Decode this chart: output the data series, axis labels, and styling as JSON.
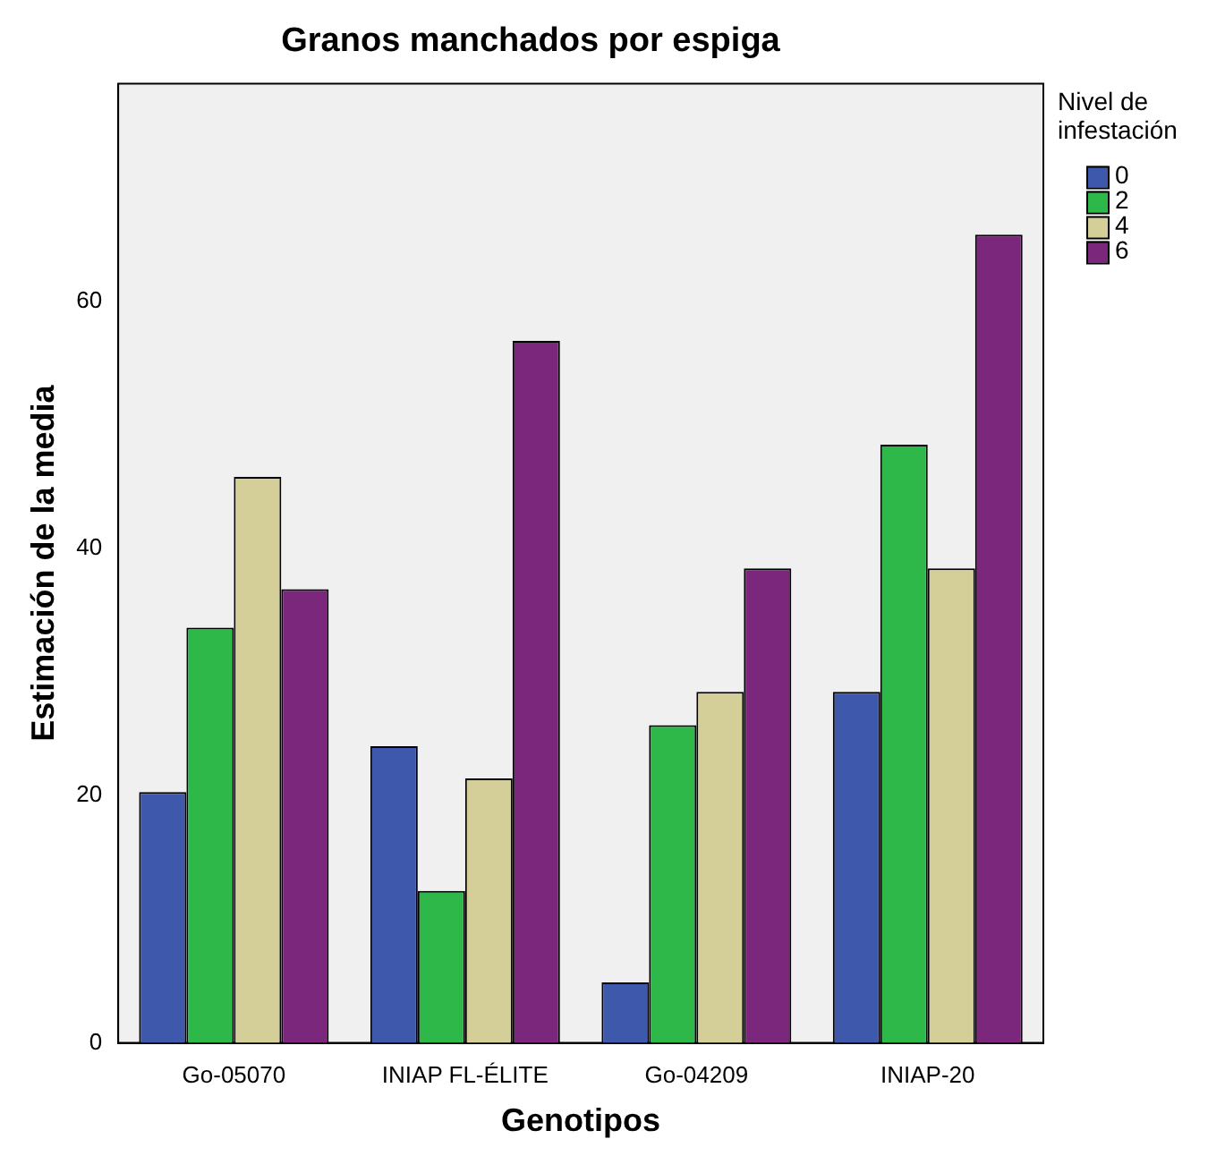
{
  "chart_data": {
    "type": "bar",
    "title": "Granos manchados por espiga",
    "xlabel": "Genotipos",
    "ylabel": "Estimación de la media",
    "legend_title": "Nivel de infestación",
    "categories": [
      "Go-05070",
      "INIAP FL-ÉLITE",
      "Go-04209",
      "INIAP-20"
    ],
    "series": [
      {
        "name": "0",
        "color": "#3e58ac",
        "values": [
          20.3,
          24.0,
          4.9,
          28.4
        ]
      },
      {
        "name": "2",
        "color": "#2fb84a",
        "values": [
          33.6,
          12.3,
          25.7,
          48.4
        ]
      },
      {
        "name": "4",
        "color": "#d4cf98",
        "values": [
          45.8,
          21.4,
          28.4,
          38.4
        ]
      },
      {
        "name": "6",
        "color": "#7b277b",
        "values": [
          36.7,
          56.8,
          38.4,
          65.4
        ]
      }
    ],
    "ylim": [
      0,
      77.6
    ],
    "yticks": [
      0,
      20,
      40,
      60
    ],
    "grid": false,
    "legend": "right"
  }
}
